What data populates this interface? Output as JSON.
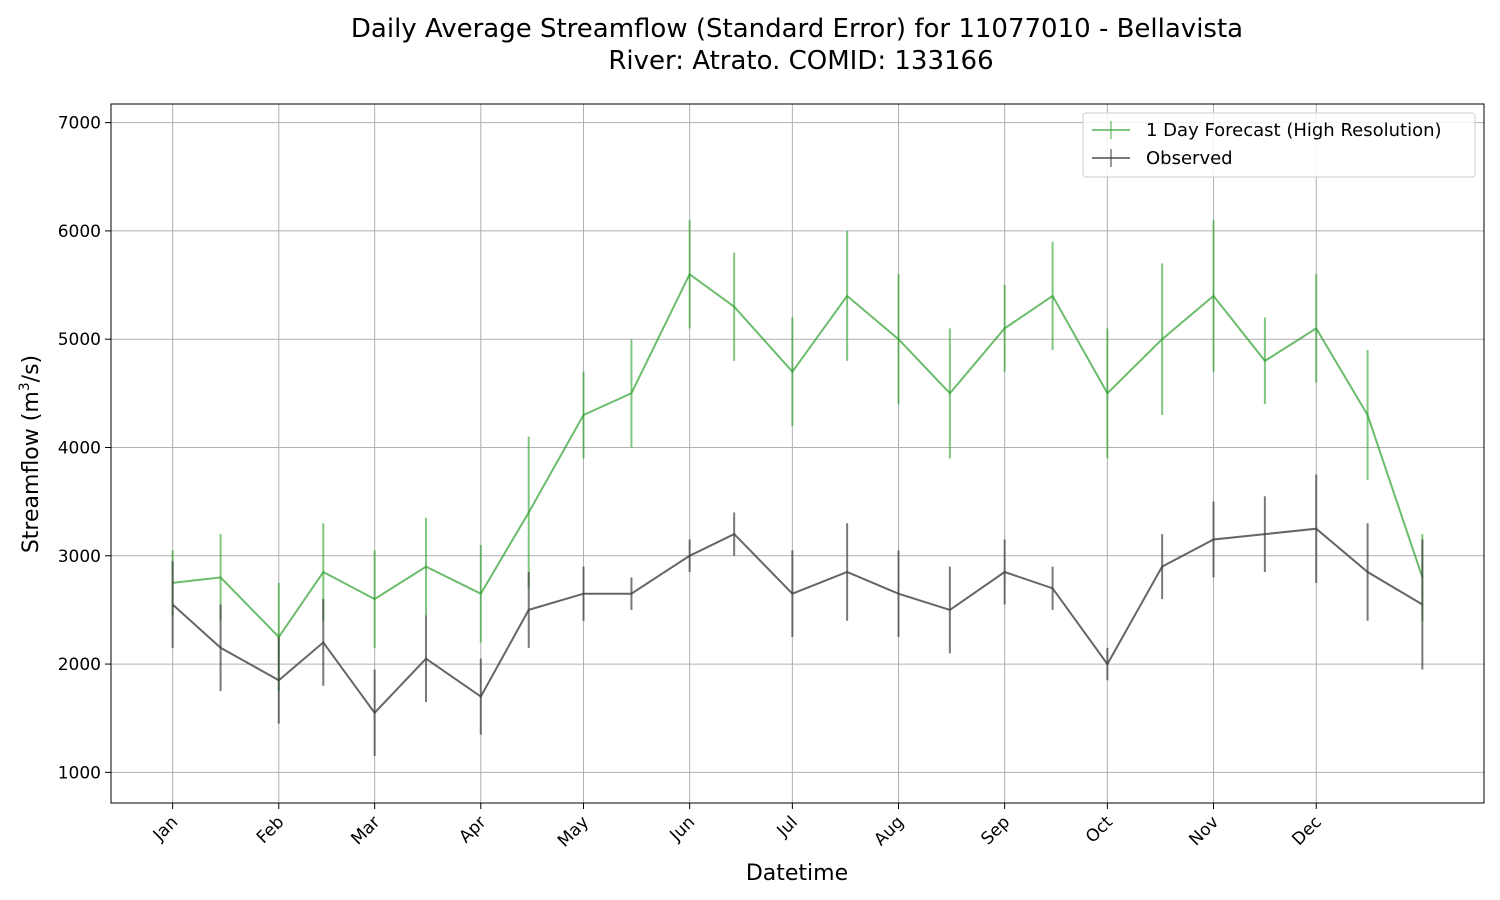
{
  "chart_data": {
    "type": "line",
    "title_line1": "Daily Average Streamflow (Standard Error) for 11077010 - Bellavista",
    "title_line2": "River: Atrato. COMID: 133166",
    "xlabel": "Datetime",
    "ylabel_prefix": "Streamflow (m",
    "ylabel_sup": "3",
    "ylabel_suffix": "/s)",
    "x_ticks": [
      "Jan",
      "Feb",
      "Mar",
      "Apr",
      "May",
      "Jun",
      "Jul",
      "Aug",
      "Sep",
      "Oct",
      "Nov",
      "Dec"
    ],
    "x_tick_days": [
      1,
      32,
      60,
      91,
      121,
      152,
      182,
      213,
      244,
      274,
      305,
      335
    ],
    "y_ticks": [
      1000,
      2000,
      3000,
      4000,
      5000,
      6000,
      7000
    ],
    "xlim": [
      -17,
      384
    ],
    "ylim": [
      717,
      7172
    ],
    "grid": true,
    "legend_position": "top-right",
    "x_days": [
      1,
      15,
      32,
      45,
      60,
      75,
      91,
      105,
      121,
      135,
      152,
      165,
      182,
      198,
      213,
      228,
      244,
      258,
      274,
      290,
      305,
      320,
      335,
      350,
      366
    ],
    "series": [
      {
        "name": "1 Day Forecast (High Resolution)",
        "color": "#2ca02c",
        "values": [
          2750,
          2800,
          2250,
          2850,
          2600,
          2900,
          2650,
          3400,
          4300,
          4500,
          5600,
          5300,
          4700,
          5400,
          5000,
          4500,
          5100,
          5400,
          4500,
          5000,
          5400,
          4800,
          5100,
          4300,
          2800
        ],
        "errors": [
          300,
          400,
          500,
          450,
          450,
          450,
          450,
          700,
          400,
          500,
          500,
          500,
          500,
          600,
          600,
          600,
          400,
          500,
          600,
          700,
          700,
          400,
          500,
          600,
          400
        ]
      },
      {
        "name": "Observed",
        "color": "#404040",
        "values": [
          2550,
          2150,
          1850,
          2200,
          1550,
          2050,
          1700,
          2500,
          2650,
          2650,
          3000,
          3200,
          2650,
          2850,
          2650,
          2500,
          2850,
          2700,
          2000,
          2900,
          3150,
          3200,
          3250,
          2850,
          2550
        ],
        "errors": [
          400,
          400,
          400,
          400,
          400,
          400,
          350,
          350,
          250,
          150,
          150,
          200,
          400,
          450,
          400,
          400,
          300,
          200,
          150,
          300,
          350,
          350,
          500,
          450,
          600
        ]
      }
    ]
  }
}
